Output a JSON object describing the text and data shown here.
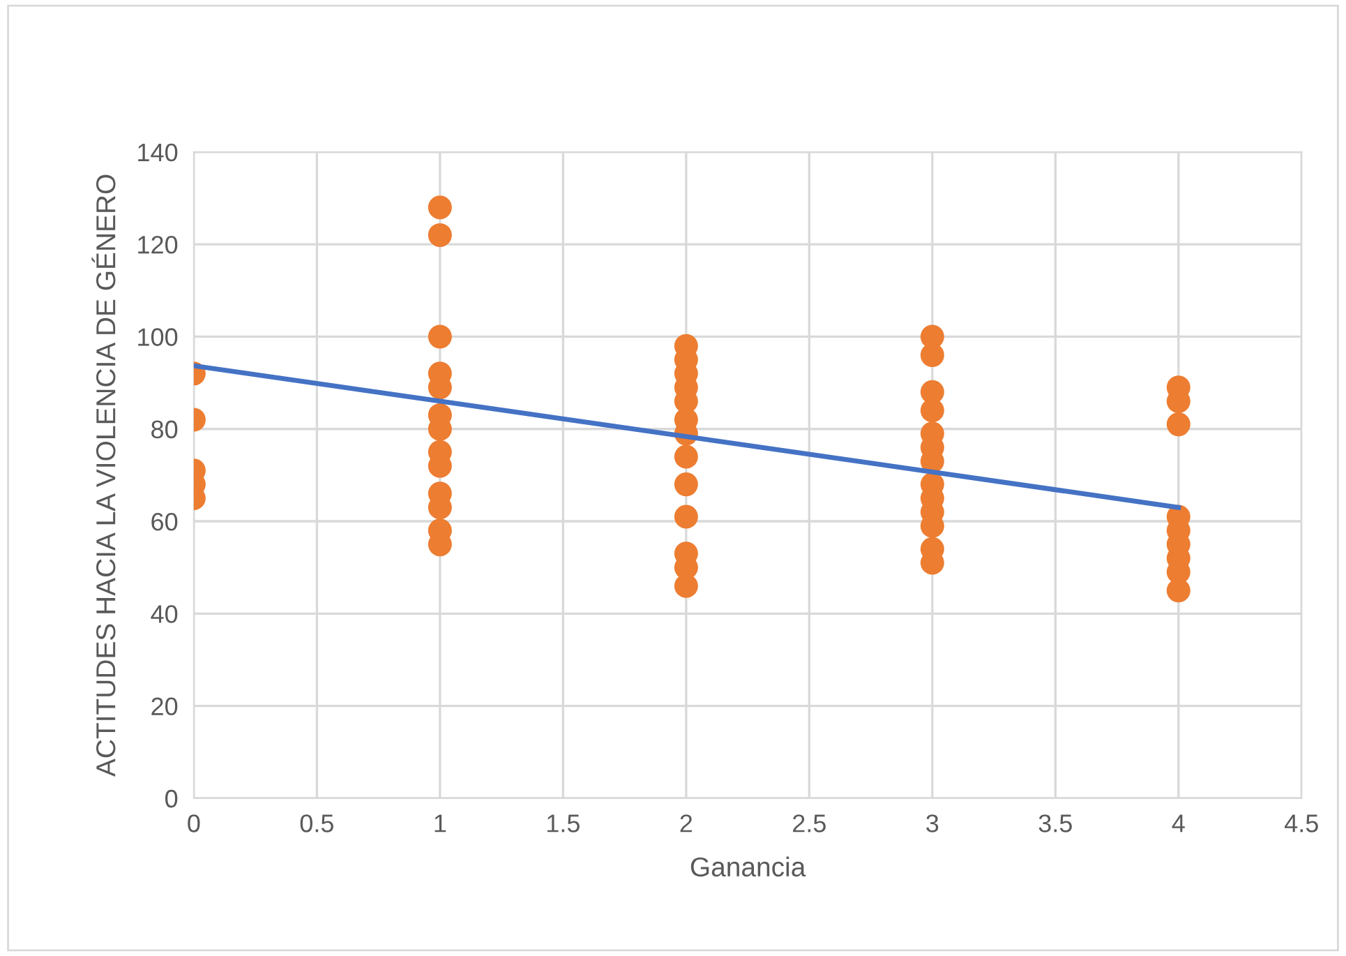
{
  "chart_data": {
    "type": "scatter",
    "xlabel": "Ganancia",
    "ylabel": "ACTITUDES HACIA LA VIOLENCIA DE GÉNERO",
    "xlim": [
      0,
      4.5
    ],
    "xticks": [
      0,
      0.5,
      1,
      1.5,
      2,
      2.5,
      3,
      3.5,
      4,
      4.5
    ],
    "ylim": [
      0,
      140
    ],
    "yticks": [
      0,
      20,
      40,
      60,
      80,
      100,
      120,
      140
    ],
    "grid": true,
    "marker": "circle",
    "series": [
      {
        "color": "#ed7d31",
        "x": [
          0,
          0,
          0,
          0,
          0,
          1,
          1,
          1,
          1,
          1,
          1,
          1,
          1,
          1,
          1,
          1,
          1,
          1,
          2,
          2,
          2,
          2,
          2,
          2,
          2,
          2,
          2,
          2,
          2,
          2,
          2,
          3,
          3,
          3,
          3,
          3,
          3,
          3,
          3,
          3,
          3,
          3,
          3,
          3,
          4,
          4,
          4,
          4,
          4,
          4,
          4,
          4,
          4
        ],
        "values": [
          92,
          82,
          71,
          68,
          65,
          128,
          122,
          100,
          92,
          89,
          83,
          80,
          75,
          72,
          66,
          63,
          58,
          55,
          98,
          95,
          92,
          89,
          86,
          82,
          79,
          74,
          68,
          61,
          53,
          50,
          46,
          100,
          96,
          88,
          84,
          79,
          76,
          73,
          68,
          65,
          62,
          59,
          54,
          51,
          89,
          86,
          81,
          61,
          58,
          55,
          52,
          49,
          45
        ]
      },
      {
        "type": "line",
        "color": "#4472c4",
        "x": [
          0,
          4
        ],
        "values": [
          93.7,
          63
        ],
        "marker": "none"
      }
    ]
  }
}
